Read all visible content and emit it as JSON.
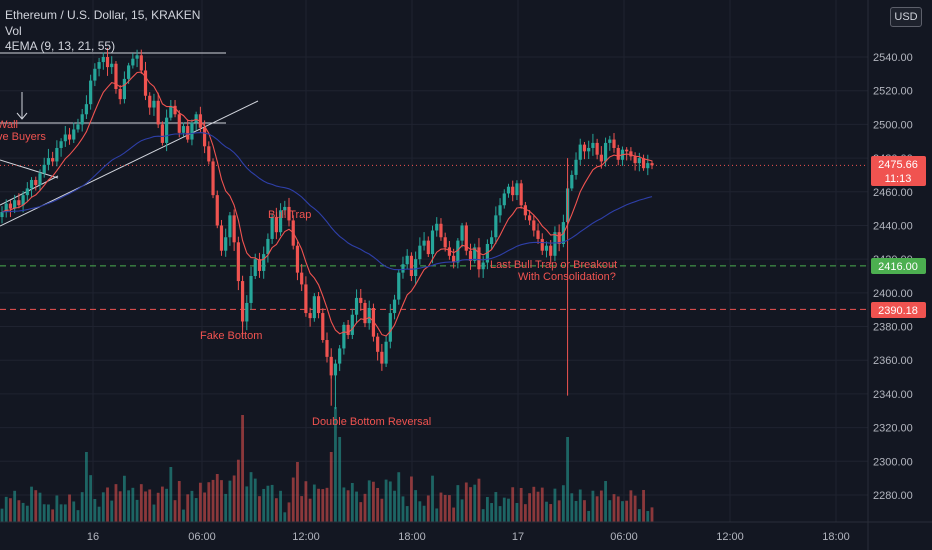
{
  "header": {
    "symbol_title": "Ethereum / U.S. Dollar, 15, KRAKEN",
    "volume_label": "Vol",
    "ema_label": "4EMA (9, 13, 21, 55)",
    "currency_button": "USD"
  },
  "price_badges": {
    "current_price": "2475.66",
    "countdown": "11:13",
    "level_green": "2416.00",
    "level_red": "2390.18"
  },
  "annotations": {
    "wall_fragment": "Wall",
    "buyers_fragment": "ve Buyers",
    "bull_trap": "Bull Trap",
    "fake_bottom": "Fake Bottom",
    "double_bottom": "Double Bottom Reversal",
    "last_bull_trap_line1": "Last Bull Trap or Breakout",
    "last_bull_trap_line2": "With Consolidation?"
  },
  "colors": {
    "background": "#131722",
    "up": "#26a69a",
    "down": "#ef5350",
    "ema_fast": "#f05350",
    "ema_slow": "#2e3fa8",
    "green_level": "#4caf50",
    "red_level": "#ef5350",
    "grid": "#1f2330"
  },
  "chart_data": {
    "type": "candlestick",
    "y_ticks": [
      2540,
      2520,
      2500,
      2480,
      2460,
      2440,
      2420,
      2400,
      2380,
      2360,
      2340,
      2320,
      2300,
      2280
    ],
    "x_ticks": [
      "16",
      "06:00",
      "12:00",
      "18:00",
      "17",
      "06:00",
      "12:00",
      "18:00"
    ],
    "ylim": [
      2266,
      2561
    ],
    "horizontal_levels": [
      {
        "price": 2416.0,
        "style": "dashed",
        "color": "green"
      },
      {
        "price": 2390.18,
        "style": "dashed",
        "color": "red"
      },
      {
        "price": 2475.66,
        "style": "dotted",
        "color": "red"
      }
    ],
    "candles_close": [
      2448,
      2453,
      2450,
      2455,
      2452,
      2458,
      2462,
      2467,
      2464,
      2471,
      2476,
      2480,
      2478,
      2486,
      2490,
      2494,
      2491,
      2497,
      2500,
      2506,
      2512,
      2526,
      2533,
      2537,
      2540,
      2534,
      2536,
      2521,
      2515,
      2527,
      2535,
      2539,
      2541,
      2532,
      2517,
      2510,
      2514,
      2500,
      2489,
      2504,
      2511,
      2506,
      2495,
      2499,
      2491,
      2501,
      2506,
      2498,
      2487,
      2478,
      2458,
      2440,
      2425,
      2433,
      2446,
      2430,
      2407,
      2383,
      2394,
      2410,
      2420,
      2413,
      2423,
      2432,
      2445,
      2436,
      2449,
      2451,
      2443,
      2428,
      2412,
      2405,
      2388,
      2385,
      2398,
      2388,
      2372,
      2362,
      2351,
      2358,
      2367,
      2381,
      2375,
      2387,
      2397,
      2394,
      2382,
      2391,
      2374,
      2365,
      2358,
      2371,
      2388,
      2396,
      2412,
      2417,
      2422,
      2410,
      2420,
      2428,
      2431,
      2423,
      2437,
      2441,
      2433,
      2427,
      2422,
      2418,
      2431,
      2440,
      2425,
      2419,
      2427,
      2414,
      2418,
      2429,
      2433,
      2446,
      2452,
      2459,
      2463,
      2458,
      2465,
      2452,
      2446,
      2443,
      2437,
      2432,
      2425,
      2428,
      2422,
      2436,
      2429,
      2442,
      2462,
      2470,
      2479,
      2488,
      2484,
      2486,
      2489,
      2482,
      2478,
      2489,
      2491,
      2486,
      2479,
      2485,
      2484,
      2481,
      2477,
      2480,
      2474,
      2477,
      2475.66
    ]
  }
}
